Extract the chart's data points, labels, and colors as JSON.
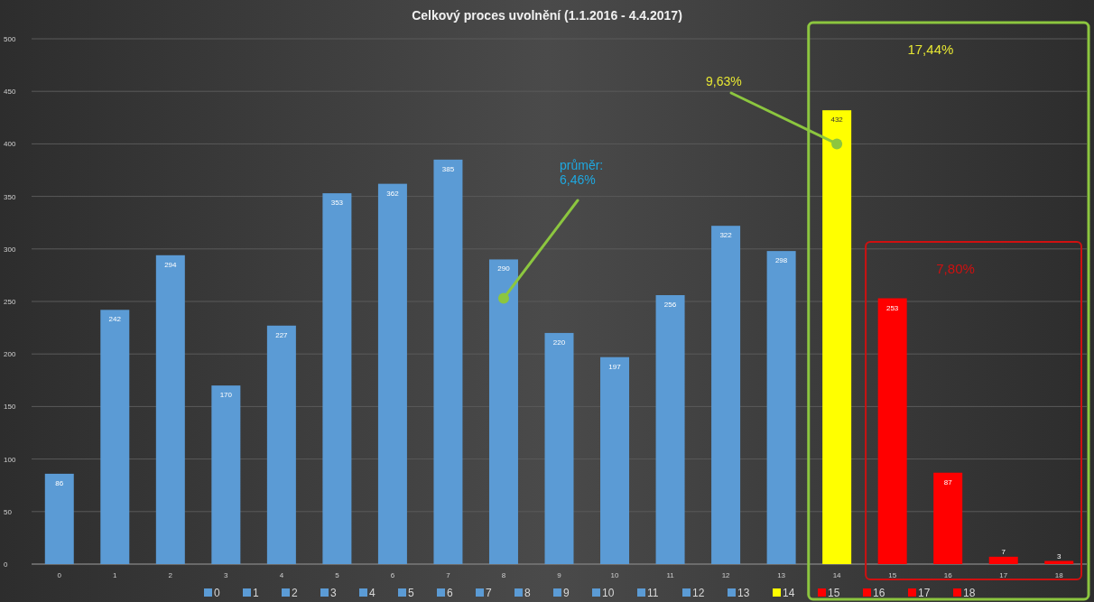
{
  "chart_data": {
    "type": "bar",
    "title": "Celkový proces uvolnění (1.1.2016 - 4.4.2017)",
    "categories": [
      "0",
      "1",
      "2",
      "3",
      "4",
      "5",
      "6",
      "7",
      "8",
      "9",
      "10",
      "11",
      "12",
      "13",
      "14",
      "15",
      "16",
      "17",
      "18"
    ],
    "series": [
      {
        "name": "0",
        "color": "#5b9bd5",
        "values": [
          86,
          null,
          null,
          null,
          null,
          null,
          null,
          null,
          null,
          null,
          null,
          null,
          null,
          null,
          null,
          null,
          null,
          null,
          null
        ]
      },
      {
        "name": "1",
        "color": "#5b9bd5",
        "values": [
          null,
          242,
          null,
          null,
          null,
          null,
          null,
          null,
          null,
          null,
          null,
          null,
          null,
          null,
          null,
          null,
          null,
          null,
          null
        ]
      },
      {
        "name": "2",
        "color": "#5b9bd5",
        "values": [
          null,
          null,
          294,
          null,
          null,
          null,
          null,
          null,
          null,
          null,
          null,
          null,
          null,
          null,
          null,
          null,
          null,
          null,
          null
        ]
      },
      {
        "name": "3",
        "color": "#5b9bd5",
        "values": [
          null,
          null,
          null,
          170,
          null,
          null,
          null,
          null,
          null,
          null,
          null,
          null,
          null,
          null,
          null,
          null,
          null,
          null,
          null
        ]
      },
      {
        "name": "4",
        "color": "#5b9bd5",
        "values": [
          null,
          null,
          null,
          null,
          227,
          null,
          null,
          null,
          null,
          null,
          null,
          null,
          null,
          null,
          null,
          null,
          null,
          null,
          null
        ]
      },
      {
        "name": "5",
        "color": "#5b9bd5",
        "values": [
          null,
          null,
          null,
          null,
          null,
          353,
          null,
          null,
          null,
          null,
          null,
          null,
          null,
          null,
          null,
          null,
          null,
          null,
          null
        ]
      },
      {
        "name": "6",
        "color": "#5b9bd5",
        "values": [
          null,
          null,
          null,
          null,
          null,
          null,
          362,
          null,
          null,
          null,
          null,
          null,
          null,
          null,
          null,
          null,
          null,
          null,
          null
        ]
      },
      {
        "name": "7",
        "color": "#5b9bd5",
        "values": [
          null,
          null,
          null,
          null,
          null,
          null,
          null,
          385,
          null,
          null,
          null,
          null,
          null,
          null,
          null,
          null,
          null,
          null,
          null
        ]
      },
      {
        "name": "8",
        "color": "#5b9bd5",
        "values": [
          null,
          null,
          null,
          null,
          null,
          null,
          null,
          null,
          290,
          null,
          null,
          null,
          null,
          null,
          null,
          null,
          null,
          null,
          null
        ]
      },
      {
        "name": "9",
        "color": "#5b9bd5",
        "values": [
          null,
          null,
          null,
          null,
          null,
          null,
          null,
          null,
          null,
          220,
          null,
          null,
          null,
          null,
          null,
          null,
          null,
          null,
          null
        ]
      },
      {
        "name": "10",
        "color": "#5b9bd5",
        "values": [
          null,
          null,
          null,
          null,
          null,
          null,
          null,
          null,
          null,
          null,
          197,
          null,
          null,
          null,
          null,
          null,
          null,
          null,
          null
        ]
      },
      {
        "name": "11",
        "color": "#5b9bd5",
        "values": [
          null,
          null,
          null,
          null,
          null,
          null,
          null,
          null,
          null,
          null,
          null,
          256,
          null,
          null,
          null,
          null,
          null,
          null,
          null
        ]
      },
      {
        "name": "12",
        "color": "#5b9bd5",
        "values": [
          null,
          null,
          null,
          null,
          null,
          null,
          null,
          null,
          null,
          null,
          null,
          null,
          322,
          null,
          null,
          null,
          null,
          null,
          null
        ]
      },
      {
        "name": "13",
        "color": "#5b9bd5",
        "values": [
          null,
          null,
          null,
          null,
          null,
          null,
          null,
          null,
          null,
          null,
          null,
          null,
          null,
          298,
          null,
          null,
          null,
          null,
          null
        ]
      },
      {
        "name": "14",
        "color": "#ffff00",
        "values": [
          null,
          null,
          null,
          null,
          null,
          null,
          null,
          null,
          null,
          null,
          null,
          null,
          null,
          null,
          432,
          null,
          null,
          null,
          null
        ]
      },
      {
        "name": "15",
        "color": "#ff0000",
        "values": [
          null,
          null,
          null,
          null,
          null,
          null,
          null,
          null,
          null,
          null,
          null,
          null,
          null,
          null,
          null,
          253,
          null,
          null,
          null
        ]
      },
      {
        "name": "16",
        "color": "#ff0000",
        "values": [
          null,
          null,
          null,
          null,
          null,
          null,
          null,
          null,
          null,
          null,
          null,
          null,
          null,
          null,
          null,
          null,
          87,
          null,
          null
        ]
      },
      {
        "name": "17",
        "color": "#ff0000",
        "values": [
          null,
          null,
          null,
          null,
          null,
          null,
          null,
          null,
          null,
          null,
          null,
          null,
          null,
          null,
          null,
          null,
          null,
          7,
          null
        ]
      },
      {
        "name": "18",
        "color": "#ff0000",
        "values": [
          null,
          null,
          null,
          null,
          null,
          null,
          null,
          null,
          null,
          null,
          null,
          null,
          null,
          null,
          null,
          null,
          null,
          null,
          3
        ]
      }
    ],
    "ylim": [
      0,
      500
    ],
    "yticks": [
      0,
      50,
      100,
      150,
      200,
      250,
      300,
      350,
      400,
      450,
      500
    ],
    "grid": "y",
    "legend": "bottom",
    "data_labels": true,
    "annotations": [
      {
        "text": "průměr: 6,46%",
        "x": "8",
        "y": 253
      },
      {
        "text": "9,63%",
        "x": "14",
        "y": 400
      },
      "17,44%",
      "7,80%"
    ]
  }
}
